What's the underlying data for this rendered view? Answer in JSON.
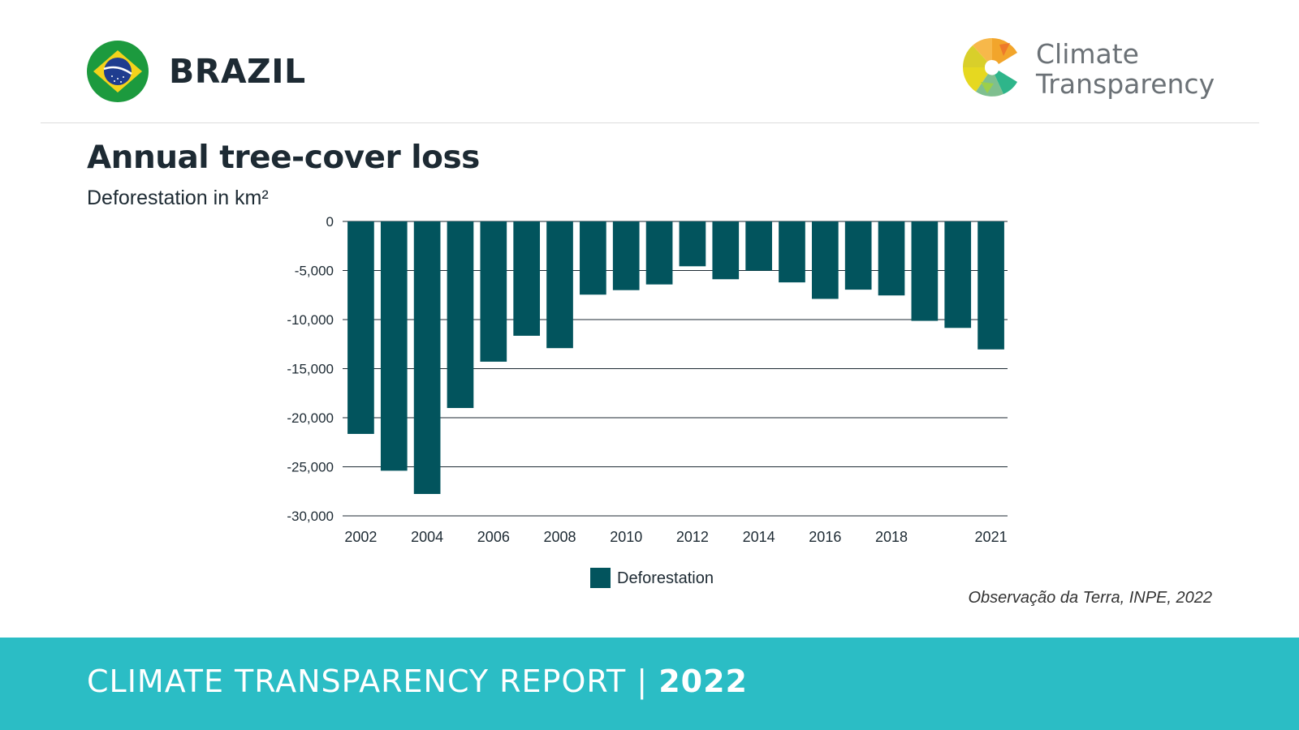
{
  "header": {
    "country": "BRAZIL",
    "brand": {
      "line1": "Climate",
      "line2": "Transparency"
    }
  },
  "chart_data": {
    "type": "bar",
    "title": "Annual tree-cover loss",
    "ylabel": "Deforestation in km²",
    "xlabel": "",
    "series": [
      {
        "name": "Deforestation",
        "values": [
          -21650,
          -25400,
          -27770,
          -19010,
          -14290,
          -11650,
          -12910,
          -7460,
          -7000,
          -6420,
          -4570,
          -5890,
          -5010,
          -6210,
          -7890,
          -6950,
          -7540,
          -10130,
          -10850,
          -13040
        ]
      }
    ],
    "categories": [
      "2002",
      "2003",
      "2004",
      "2005",
      "2006",
      "2007",
      "2008",
      "2009",
      "2010",
      "2011",
      "2012",
      "2013",
      "2014",
      "2015",
      "2016",
      "2017",
      "2018",
      "2019",
      "2020",
      "2021"
    ],
    "x_tick_labels": [
      "2002",
      "2004",
      "2006",
      "2008",
      "2010",
      "2012",
      "2014",
      "2016",
      "2018",
      "2021"
    ],
    "y_ticks": [
      0,
      -5000,
      -10000,
      -15000,
      -20000,
      -25000,
      -30000
    ],
    "y_tick_labels": [
      "0",
      "-5,000",
      "-10,000",
      "-15,000",
      "-20,000",
      "-25,000",
      "-30,000"
    ],
    "ylim": [
      -30000,
      0
    ],
    "grid": true,
    "legend_position": "bottom-center",
    "bar_color": "#02545d"
  },
  "source": "Observação da Terra, INPE, 2022",
  "footer": {
    "report": "CLIMATE TRANSPARENCY REPORT | ",
    "year": "2022"
  },
  "colors": {
    "footer_bg": "#2bbdc5",
    "bar": "#02545d"
  }
}
